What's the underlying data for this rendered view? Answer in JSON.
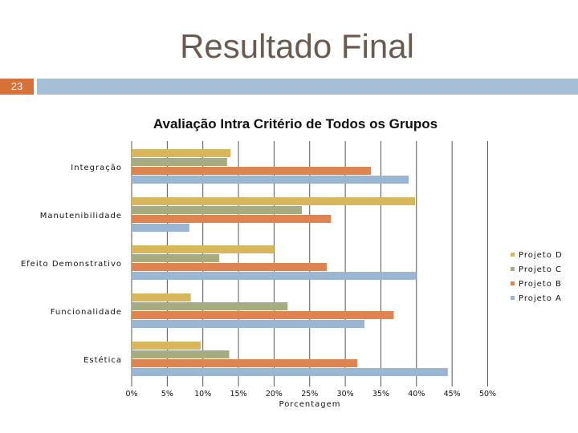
{
  "slide": {
    "title": "Resultado Final",
    "number": "23"
  },
  "colors": {
    "accent_orange": "#d8703a",
    "header_blue": "#a7bfd6",
    "title_text": "#6b5a50"
  },
  "chart_data": {
    "type": "bar",
    "orientation": "horizontal",
    "title": "Avaliação Intra Critério de Todos os Grupos",
    "xlabel": "Porcentagem",
    "ylabel": "",
    "xlim": [
      0,
      50
    ],
    "xticks": [
      "0%",
      "5%",
      "10%",
      "15%",
      "20%",
      "25%",
      "30%",
      "35%",
      "40%",
      "45%",
      "50%"
    ],
    "grid": "vertical",
    "legend_position": "right",
    "categories": [
      "Integração",
      "Manutenibilidade",
      "Efeito Demonstrativo",
      "Funcionalidade",
      "Estética"
    ],
    "series": [
      {
        "name": "Projeto D",
        "color": "#d8b65c",
        "values": [
          13.9,
          39.8,
          20.0,
          8.3,
          9.7
        ]
      },
      {
        "name": "Projeto C",
        "color": "#a7ab80",
        "values": [
          13.4,
          23.9,
          12.3,
          21.9,
          13.7
        ]
      },
      {
        "name": "Projeto B",
        "color": "#df8450",
        "values": [
          33.6,
          28.0,
          27.4,
          36.8,
          31.7
        ]
      },
      {
        "name": "Projeto A",
        "color": "#9ab6d2",
        "values": [
          38.9,
          8.1,
          40.0,
          32.7,
          44.4
        ]
      }
    ]
  }
}
